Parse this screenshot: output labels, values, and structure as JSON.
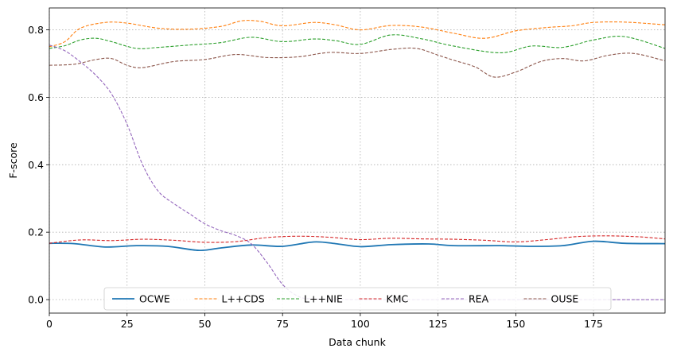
{
  "chart_data": {
    "type": "line",
    "xlabel": "Data chunk",
    "ylabel": "F-score",
    "xlim": [
      0,
      198
    ],
    "ylim": [
      -0.04,
      0.865
    ],
    "xticks": [
      0,
      25,
      50,
      75,
      100,
      125,
      150,
      175
    ],
    "yticks": [
      0.0,
      0.2,
      0.4,
      0.6,
      0.8
    ],
    "ytick_labels": [
      "0.0",
      "0.2",
      "0.4",
      "0.6",
      "0.8"
    ],
    "grid": true,
    "legend_position": "bottom-center",
    "series": [
      {
        "name": "OCWE",
        "style": "solid",
        "color": "#1f77b4",
        "x": [
          0,
          8,
          18,
          28,
          38,
          48,
          55,
          65,
          75,
          85,
          92,
          100,
          110,
          122,
          130,
          145,
          155,
          165,
          175,
          185,
          198
        ],
        "y": [
          0.167,
          0.166,
          0.156,
          0.16,
          0.158,
          0.146,
          0.153,
          0.162,
          0.158,
          0.171,
          0.166,
          0.157,
          0.163,
          0.165,
          0.16,
          0.16,
          0.158,
          0.16,
          0.173,
          0.167,
          0.166
        ]
      },
      {
        "name": "L++CDS",
        "style": "dashed",
        "color": "#ff7f0e",
        "x": [
          0,
          5,
          10,
          18,
          25,
          35,
          45,
          55,
          62,
          68,
          75,
          85,
          92,
          100,
          110,
          120,
          130,
          140,
          150,
          160,
          168,
          175,
          185,
          198
        ],
        "y": [
          0.75,
          0.765,
          0.805,
          0.822,
          0.82,
          0.805,
          0.802,
          0.81,
          0.827,
          0.825,
          0.812,
          0.822,
          0.815,
          0.8,
          0.813,
          0.808,
          0.79,
          0.775,
          0.797,
          0.807,
          0.812,
          0.822,
          0.823,
          0.815
        ]
      },
      {
        "name": "L++NIE",
        "style": "dashed",
        "color": "#2ca02c",
        "x": [
          0,
          5,
          10,
          15,
          20,
          28,
          35,
          45,
          55,
          65,
          75,
          85,
          92,
          100,
          110,
          120,
          130,
          145,
          155,
          165,
          175,
          185,
          198
        ],
        "y": [
          0.745,
          0.753,
          0.77,
          0.775,
          0.765,
          0.745,
          0.748,
          0.755,
          0.762,
          0.778,
          0.765,
          0.773,
          0.768,
          0.757,
          0.785,
          0.773,
          0.752,
          0.732,
          0.752,
          0.748,
          0.77,
          0.78,
          0.745
        ]
      },
      {
        "name": "KMC",
        "style": "dashed",
        "color": "#d62728",
        "x": [
          0,
          10,
          20,
          30,
          40,
          50,
          60,
          70,
          80,
          90,
          100,
          110,
          120,
          130,
          140,
          150,
          160,
          170,
          180,
          190,
          198
        ],
        "y": [
          0.167,
          0.177,
          0.175,
          0.179,
          0.176,
          0.17,
          0.172,
          0.184,
          0.188,
          0.185,
          0.178,
          0.182,
          0.18,
          0.179,
          0.176,
          0.171,
          0.178,
          0.187,
          0.189,
          0.186,
          0.18
        ]
      },
      {
        "name": "REA",
        "style": "dashed",
        "color": "#9467bd",
        "x": [
          0,
          5,
          10,
          15,
          20,
          25,
          30,
          35,
          40,
          45,
          50,
          55,
          60,
          65,
          70,
          75,
          80,
          85,
          100,
          120,
          150,
          198
        ],
        "y": [
          0.755,
          0.738,
          0.705,
          0.665,
          0.61,
          0.52,
          0.4,
          0.322,
          0.285,
          0.255,
          0.225,
          0.205,
          0.19,
          0.165,
          0.11,
          0.045,
          0.01,
          0.002,
          0.0,
          0.0,
          0.0,
          0.0
        ]
      },
      {
        "name": "OUSE",
        "style": "dashed",
        "color": "#8c564b",
        "x": [
          0,
          8,
          15,
          20,
          25,
          30,
          40,
          50,
          60,
          70,
          80,
          90,
          100,
          110,
          118,
          125,
          130,
          137,
          143,
          150,
          158,
          165,
          172,
          180,
          188,
          198
        ],
        "y": [
          0.695,
          0.698,
          0.712,
          0.715,
          0.695,
          0.688,
          0.706,
          0.712,
          0.727,
          0.718,
          0.72,
          0.733,
          0.73,
          0.742,
          0.745,
          0.725,
          0.71,
          0.69,
          0.66,
          0.675,
          0.706,
          0.715,
          0.708,
          0.725,
          0.73,
          0.708
        ]
      }
    ]
  }
}
